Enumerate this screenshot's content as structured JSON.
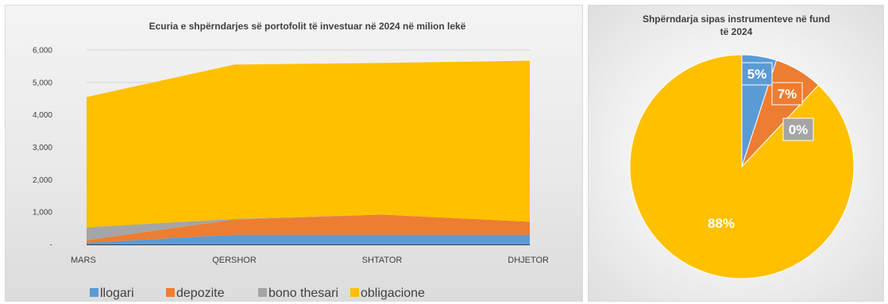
{
  "chart_data": [
    {
      "type": "area",
      "stacked": true,
      "title": "Ecuria e shpërndarjes së portofolit të investuar në 2024 në milion lekë",
      "categories": [
        "MARS",
        "QERSHOR",
        "SHTATOR",
        "DHJETOR"
      ],
      "y_ticks": [
        "-",
        "1,000",
        "2,000",
        "3,000",
        "4,000",
        "5,000",
        "6,000"
      ],
      "ylim": [
        0,
        6000
      ],
      "grid": true,
      "legend_position": "bottom",
      "series": [
        {
          "name": "llogari",
          "color": "#5B9BD5",
          "values": [
            50,
            300,
            300,
            300
          ]
        },
        {
          "name": "depozite",
          "color": "#ED7D31",
          "values": [
            80,
            470,
            620,
            400
          ]
        },
        {
          "name": "bono thesari",
          "color": "#A5A5A5",
          "values": [
            400,
            20,
            0,
            0
          ]
        },
        {
          "name": "obligacione",
          "color": "#FFC000",
          "values": [
            4020,
            4760,
            4680,
            4970
          ]
        }
      ]
    },
    {
      "type": "pie",
      "title_lines": [
        "Shpërndarja sipas instrumenteve në fund",
        "të 2024"
      ],
      "slices": [
        {
          "label": "5%",
          "value": 5,
          "color": "#5B9BD5"
        },
        {
          "label": "7%",
          "value": 7,
          "color": "#ED7D31"
        },
        {
          "label": "0%",
          "value": 0,
          "color": "#A5A5A5"
        },
        {
          "label": "88%",
          "value": 88,
          "color": "#FFC000"
        }
      ]
    }
  ]
}
